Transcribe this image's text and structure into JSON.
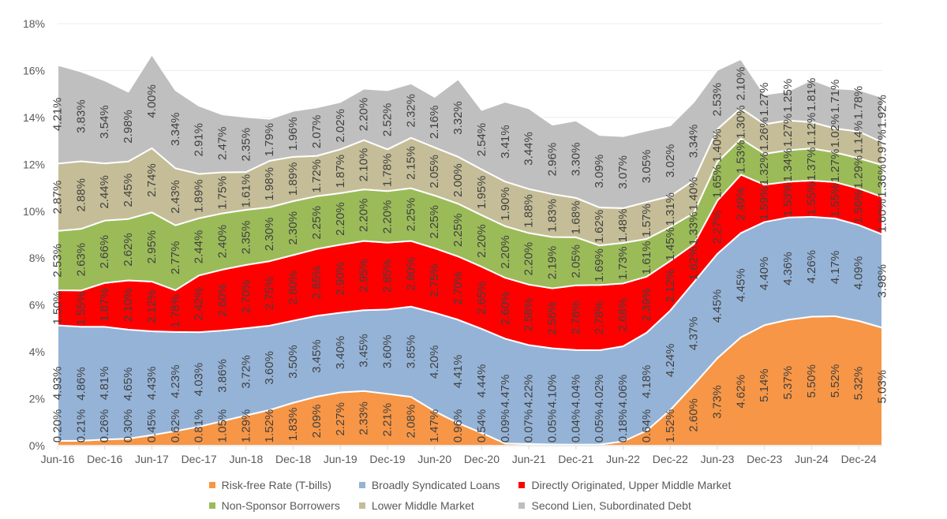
{
  "chart_data": {
    "type": "area",
    "stacked": true,
    "title": "",
    "xlabel": "",
    "ylabel": "",
    "ylim": [
      0,
      18
    ],
    "yticks": [
      "0%",
      "2%",
      "4%",
      "6%",
      "8%",
      "10%",
      "12%",
      "14%",
      "16%",
      "18%"
    ],
    "xtick_labels": [
      "Jun-16",
      "Dec-16",
      "Jun-17",
      "Dec-17",
      "Jun-18",
      "Dec-18",
      "Jun-19",
      "Dec-19",
      "Jun-20",
      "Dec-20",
      "Jun-21",
      "Dec-21",
      "Jun-22",
      "Dec-22",
      "Jun-23",
      "Dec-23",
      "Jun-24",
      "Dec-24"
    ],
    "points_per_tick": 2,
    "grid": true,
    "legend_position": "center",
    "series": [
      {
        "name": "Risk-free Rate (T-bills)",
        "color": "#f79646",
        "values": [
          0.2,
          0.21,
          0.26,
          0.3,
          0.45,
          0.62,
          0.81,
          1.05,
          1.29,
          1.52,
          1.83,
          2.09,
          2.27,
          2.33,
          2.21,
          2.08,
          1.47,
          0.96,
          0.54,
          0.09,
          0.07,
          0.05,
          0.04,
          0.05,
          0.18,
          0.64,
          1.52,
          2.6,
          3.73,
          4.62,
          5.14,
          5.37,
          5.5,
          5.52,
          5.32,
          5.03
        ]
      },
      {
        "name": "Broadly Syndicated  Loans",
        "color": "#95b3d7",
        "values": [
          4.93,
          4.86,
          4.81,
          4.65,
          4.43,
          4.23,
          4.03,
          3.86,
          3.72,
          3.6,
          3.5,
          3.45,
          3.4,
          3.45,
          3.6,
          3.85,
          4.2,
          4.41,
          4.44,
          4.47,
          4.22,
          4.1,
          4.04,
          4.02,
          4.06,
          4.18,
          4.24,
          4.37,
          4.45,
          4.45,
          4.4,
          4.36,
          4.26,
          4.17,
          4.09,
          3.98
        ]
      },
      {
        "name": "Directly Originated, Upper Middle Market",
        "color": "#ff0000",
        "values": [
          1.5,
          1.55,
          1.87,
          2.1,
          2.12,
          1.78,
          2.42,
          2.6,
          2.7,
          2.75,
          2.8,
          2.85,
          2.9,
          2.95,
          2.85,
          2.8,
          2.75,
          2.7,
          2.65,
          2.6,
          2.58,
          2.56,
          2.76,
          2.78,
          2.68,
          2.39,
          2.12,
          1.62,
          2.27,
          2.49,
          1.59,
          1.53,
          1.55,
          1.55,
          1.56,
          1.6
        ]
      },
      {
        "name": "Non-Sponsor Borrowers",
        "color": "#9bbb59",
        "values": [
          2.53,
          2.63,
          2.66,
          2.62,
          2.95,
          2.77,
          2.44,
          2.4,
          2.35,
          2.3,
          2.3,
          2.25,
          2.2,
          2.2,
          2.2,
          2.25,
          2.25,
          2.25,
          2.2,
          2.2,
          2.2,
          2.19,
          2.05,
          1.69,
          1.73,
          1.61,
          1.45,
          1.33,
          1.65,
          1.53,
          1.32,
          1.34,
          1.37,
          1.27,
          1.29,
          1.36
        ]
      },
      {
        "name": "Lower Middle Market",
        "color": "#c4bd97",
        "values": [
          2.87,
          2.88,
          2.44,
          2.45,
          2.74,
          2.43,
          1.89,
          1.75,
          1.61,
          1.98,
          1.89,
          1.72,
          1.87,
          2.1,
          1.78,
          2.15,
          2.05,
          2.0,
          1.95,
          1.9,
          1.88,
          1.83,
          1.68,
          1.62,
          1.48,
          1.57,
          1.31,
          1.4,
          1.4,
          1.3,
          1.26,
          1.27,
          1.12,
          1.02,
          1.14,
          0.97
        ]
      },
      {
        "name": "Second Lien, Subordinated Debt",
        "color": "#bfbfbf",
        "values": [
          4.21,
          3.83,
          3.54,
          2.98,
          4.0,
          3.34,
          2.91,
          2.47,
          2.35,
          1.79,
          1.96,
          2.07,
          2.02,
          2.2,
          2.52,
          2.32,
          2.16,
          3.32,
          2.54,
          3.41,
          3.44,
          2.96,
          3.3,
          3.09,
          3.07,
          3.05,
          3.02,
          3.34,
          2.53,
          2.1,
          1.27,
          1.25,
          1.81,
          1.71,
          1.78,
          1.92
        ]
      }
    ]
  }
}
